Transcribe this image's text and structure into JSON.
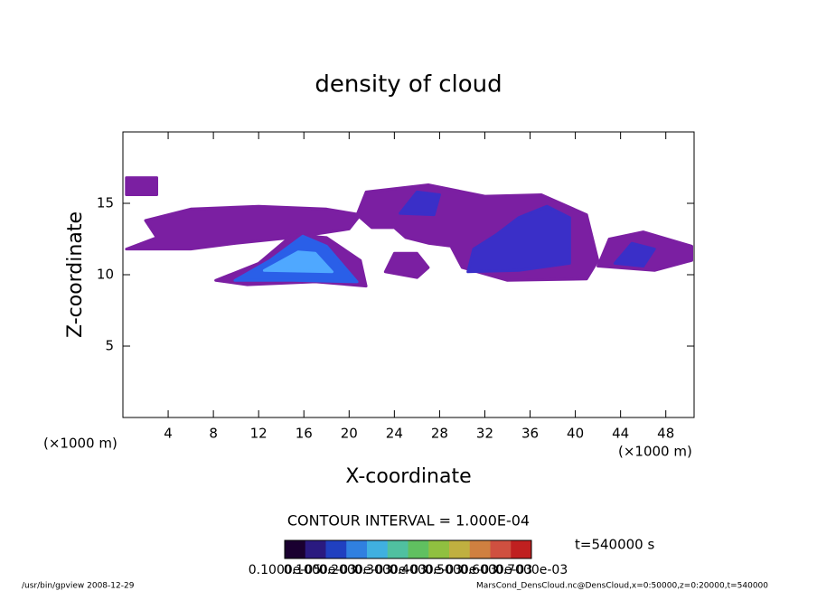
{
  "chart_data": {
    "type": "contour",
    "title": "density of cloud",
    "x_label": "X-coordinate",
    "y_label": "Z-coordinate",
    "x_unit": "(×1000 m)",
    "y_unit": "(×1000 m)",
    "xlim": [
      0,
      50.5
    ],
    "ylim": [
      0,
      20
    ],
    "xticks": [
      4,
      8,
      12,
      16,
      20,
      24,
      28,
      32,
      36,
      40,
      44,
      48
    ],
    "yticks": [
      5,
      10,
      15
    ],
    "regions": [
      {
        "color": "#7b1fa2",
        "points": [
          [
            0.3,
            11.8
          ],
          [
            3,
            12.6
          ],
          [
            2,
            13.8
          ],
          [
            6,
            14.6
          ],
          [
            12,
            14.8
          ],
          [
            18,
            14.6
          ],
          [
            21,
            14.2
          ],
          [
            20,
            13.2
          ],
          [
            15,
            12.6
          ],
          [
            10,
            12.2
          ],
          [
            6,
            11.8
          ]
        ]
      },
      {
        "color": "#7b1fa2",
        "points": [
          [
            0.3,
            15.6
          ],
          [
            3,
            15.6
          ],
          [
            3,
            16.8
          ],
          [
            0.3,
            16.8
          ]
        ]
      },
      {
        "color": "#7b1fa2",
        "points": [
          [
            8.2,
            9.6
          ],
          [
            12,
            10.8
          ],
          [
            15,
            12.8
          ],
          [
            18,
            12.6
          ],
          [
            21,
            11
          ],
          [
            21.5,
            9.2
          ],
          [
            17,
            9.5
          ],
          [
            11,
            9.3
          ]
        ]
      },
      {
        "color": "#7b1fa2",
        "points": [
          [
            20.7,
            14.2
          ],
          [
            21.5,
            15.8
          ],
          [
            27,
            16.3
          ],
          [
            32,
            15.5
          ],
          [
            37,
            15.6
          ],
          [
            41,
            14.2
          ],
          [
            42,
            11
          ],
          [
            41,
            9.7
          ],
          [
            34,
            9.6
          ],
          [
            30,
            10.5
          ],
          [
            29,
            12
          ],
          [
            27,
            12.2
          ],
          [
            25,
            12.6
          ],
          [
            24,
            13.3
          ],
          [
            22,
            13.3
          ]
        ]
      },
      {
        "color": "#7b1fa2",
        "points": [
          [
            23.2,
            10.2
          ],
          [
            24,
            11.5
          ],
          [
            26,
            11.5
          ],
          [
            27,
            10.5
          ],
          [
            26,
            9.8
          ]
        ]
      },
      {
        "color": "#7b1fa2",
        "points": [
          [
            42,
            10.6
          ],
          [
            43,
            12.5
          ],
          [
            46,
            13
          ],
          [
            50.3,
            12
          ],
          [
            50.3,
            11
          ],
          [
            47,
            10.3
          ]
        ]
      },
      {
        "color": "#3a2fc8",
        "points": [
          [
            30.5,
            10.2
          ],
          [
            31,
            11.8
          ],
          [
            33,
            12.8
          ],
          [
            35,
            14
          ],
          [
            37.5,
            14.8
          ],
          [
            39.5,
            14
          ],
          [
            39.5,
            10.8
          ],
          [
            35,
            10.3
          ]
        ]
      },
      {
        "color": "#3a2fc8",
        "points": [
          [
            24.5,
            14.3
          ],
          [
            26,
            15.8
          ],
          [
            28,
            15.6
          ],
          [
            27.5,
            14.2
          ]
        ]
      },
      {
        "color": "#3a2fc8",
        "points": [
          [
            43.5,
            10.8
          ],
          [
            45,
            12.2
          ],
          [
            47,
            11.8
          ],
          [
            46,
            10.6
          ]
        ]
      },
      {
        "color": "#2a5fe8",
        "points": [
          [
            9.9,
            9.6
          ],
          [
            13,
            11
          ],
          [
            15.9,
            12.7
          ],
          [
            18,
            12
          ],
          [
            20.7,
            9.5
          ],
          [
            15,
            9.6
          ]
        ]
      },
      {
        "color": "#4fa8ff",
        "points": [
          [
            12.5,
            10.3
          ],
          [
            15.5,
            11.6
          ],
          [
            17,
            11.5
          ],
          [
            18.5,
            10.2
          ]
        ]
      }
    ],
    "contour_interval": "CONTOUR INTERVAL = 1.000E-04",
    "time_label": "t=540000 s",
    "colorbar": {
      "colors": [
        "#1a0030",
        "#2a1a80",
        "#2040c0",
        "#3080e0",
        "#40b0e0",
        "#50c0a0",
        "#60c060",
        "#90c040",
        "#c0b040",
        "#d08040",
        "#d05040",
        "#c02020"
      ],
      "labels": [
        "0.1000e-05",
        "0.1000e-03",
        "0.2000e-03",
        "0.3000e-03",
        "0.4000e-03",
        "0.5000e-03",
        "0.6000e-03",
        "0.7000e-03"
      ]
    },
    "footer_left": "/usr/bin/gpview  2008-12-29",
    "footer_right": "MarsCond_DensCloud.nc@DensCloud,x=0:50000,z=0:20000,t=540000"
  }
}
